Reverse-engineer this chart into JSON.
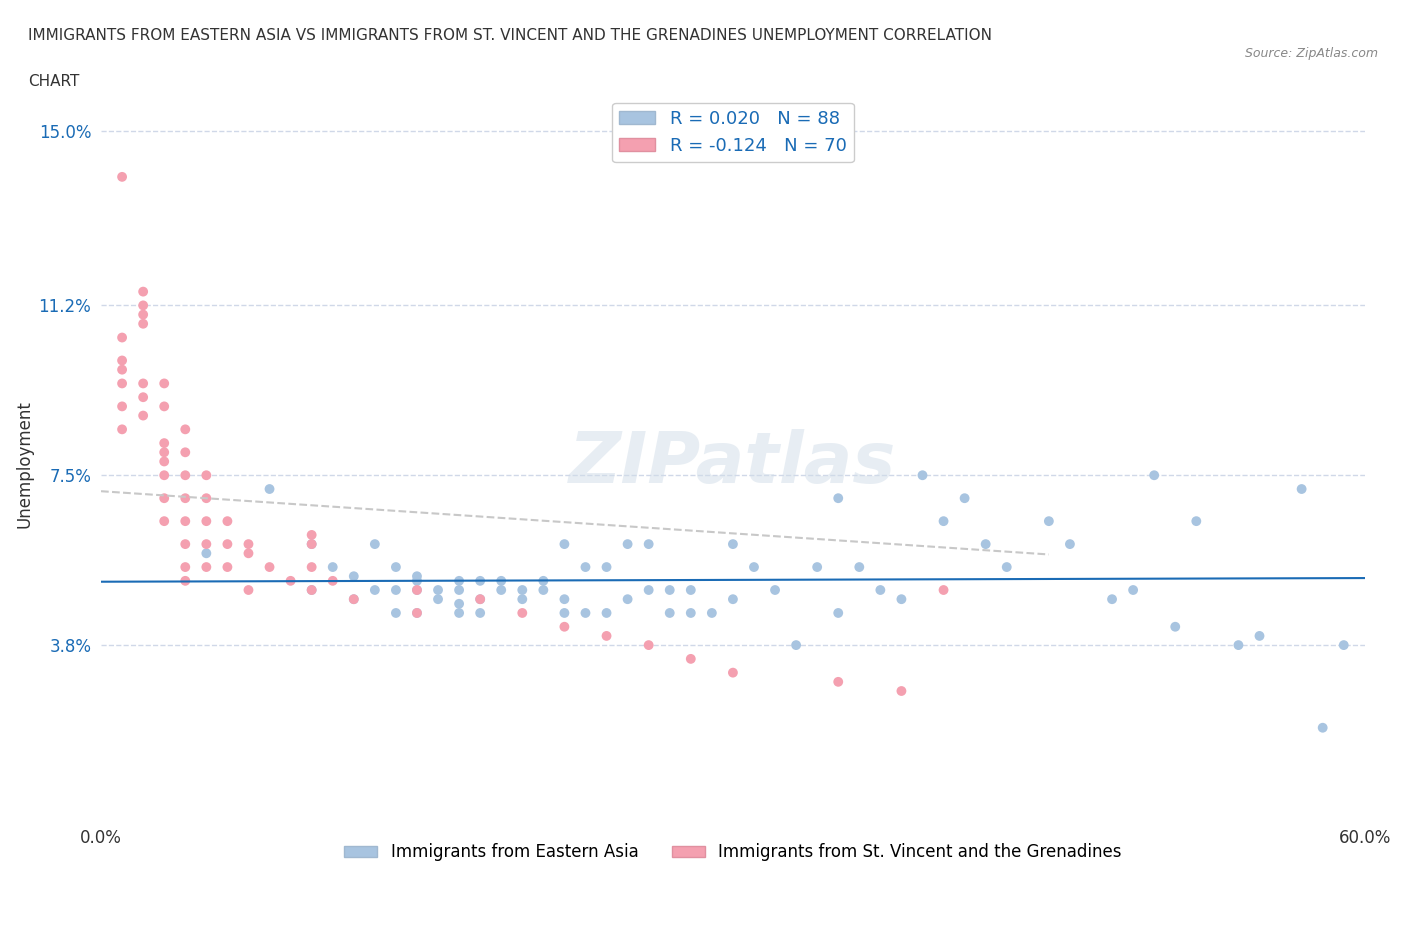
{
  "title_line1": "IMMIGRANTS FROM EASTERN ASIA VS IMMIGRANTS FROM ST. VINCENT AND THE GRENADINES UNEMPLOYMENT CORRELATION",
  "title_line2": "CHART",
  "source": "Source: ZipAtlas.com",
  "xlabel": "",
  "ylabel": "Unemployment",
  "xlim": [
    0.0,
    0.6
  ],
  "ylim": [
    0.0,
    0.155
  ],
  "xticks": [
    0.0,
    0.1,
    0.2,
    0.3,
    0.4,
    0.5,
    0.6
  ],
  "xticklabels": [
    "0.0%",
    "",
    "",
    "",
    "",
    "",
    "60.0%"
  ],
  "ytick_positions": [
    0.038,
    0.075,
    0.112,
    0.15
  ],
  "ytick_labels": [
    "3.8%",
    "7.5%",
    "11.2%",
    "15.0%"
  ],
  "R_eastern_asia": 0.02,
  "N_eastern_asia": 88,
  "R_svg": -0.124,
  "N_svg": 70,
  "color_eastern_asia": "#a8c4e0",
  "color_svg": "#f4a0b0",
  "line_color_eastern_asia": "#1a6bb5",
  "line_color_svg": "#c8c8c8",
  "legend_label_1": "Immigrants from Eastern Asia",
  "legend_label_2": "Immigrants from St. Vincent and the Grenadines",
  "watermark": "ZIPatlas",
  "background_color": "#ffffff",
  "grid_color": "#d0d8e8",
  "eastern_asia_x": [
    0.05,
    0.08,
    0.1,
    0.1,
    0.11,
    0.12,
    0.12,
    0.13,
    0.13,
    0.14,
    0.14,
    0.14,
    0.15,
    0.15,
    0.15,
    0.15,
    0.16,
    0.16,
    0.17,
    0.17,
    0.17,
    0.17,
    0.18,
    0.18,
    0.18,
    0.19,
    0.19,
    0.2,
    0.2,
    0.21,
    0.21,
    0.22,
    0.22,
    0.22,
    0.23,
    0.23,
    0.24,
    0.24,
    0.25,
    0.25,
    0.26,
    0.26,
    0.27,
    0.27,
    0.28,
    0.28,
    0.29,
    0.3,
    0.3,
    0.31,
    0.32,
    0.33,
    0.34,
    0.35,
    0.35,
    0.36,
    0.37,
    0.38,
    0.39,
    0.4,
    0.41,
    0.42,
    0.43,
    0.45,
    0.46,
    0.48,
    0.49,
    0.5,
    0.51,
    0.52,
    0.54,
    0.55,
    0.57,
    0.58,
    0.59
  ],
  "eastern_asia_y": [
    0.058,
    0.072,
    0.05,
    0.06,
    0.055,
    0.048,
    0.053,
    0.06,
    0.05,
    0.045,
    0.05,
    0.055,
    0.045,
    0.05,
    0.052,
    0.053,
    0.048,
    0.05,
    0.045,
    0.047,
    0.05,
    0.052,
    0.045,
    0.048,
    0.052,
    0.05,
    0.052,
    0.048,
    0.05,
    0.05,
    0.052,
    0.045,
    0.048,
    0.06,
    0.045,
    0.055,
    0.045,
    0.055,
    0.048,
    0.06,
    0.05,
    0.06,
    0.045,
    0.05,
    0.045,
    0.05,
    0.045,
    0.048,
    0.06,
    0.055,
    0.05,
    0.038,
    0.055,
    0.045,
    0.07,
    0.055,
    0.05,
    0.048,
    0.075,
    0.065,
    0.07,
    0.06,
    0.055,
    0.065,
    0.06,
    0.048,
    0.05,
    0.075,
    0.042,
    0.065,
    0.038,
    0.04,
    0.072,
    0.02,
    0.038
  ],
  "svg_x": [
    0.01,
    0.01,
    0.01,
    0.01,
    0.01,
    0.01,
    0.01,
    0.02,
    0.02,
    0.02,
    0.02,
    0.02,
    0.02,
    0.02,
    0.03,
    0.03,
    0.03,
    0.03,
    0.03,
    0.03,
    0.03,
    0.03,
    0.04,
    0.04,
    0.04,
    0.04,
    0.04,
    0.04,
    0.04,
    0.04,
    0.05,
    0.05,
    0.05,
    0.05,
    0.05,
    0.06,
    0.06,
    0.06,
    0.07,
    0.07,
    0.07,
    0.08,
    0.09,
    0.1,
    0.1,
    0.1,
    0.1,
    0.11,
    0.12,
    0.15,
    0.15,
    0.18,
    0.2,
    0.22,
    0.24,
    0.26,
    0.28,
    0.3,
    0.35,
    0.38,
    0.4
  ],
  "svg_y": [
    0.14,
    0.105,
    0.1,
    0.098,
    0.095,
    0.09,
    0.085,
    0.115,
    0.112,
    0.11,
    0.108,
    0.095,
    0.092,
    0.088,
    0.095,
    0.09,
    0.082,
    0.08,
    0.078,
    0.075,
    0.07,
    0.065,
    0.085,
    0.08,
    0.075,
    0.07,
    0.065,
    0.06,
    0.055,
    0.052,
    0.075,
    0.07,
    0.065,
    0.06,
    0.055,
    0.065,
    0.06,
    0.055,
    0.06,
    0.058,
    0.05,
    0.055,
    0.052,
    0.062,
    0.06,
    0.055,
    0.05,
    0.052,
    0.048,
    0.05,
    0.045,
    0.048,
    0.045,
    0.042,
    0.04,
    0.038,
    0.035,
    0.032,
    0.03,
    0.028,
    0.05
  ]
}
